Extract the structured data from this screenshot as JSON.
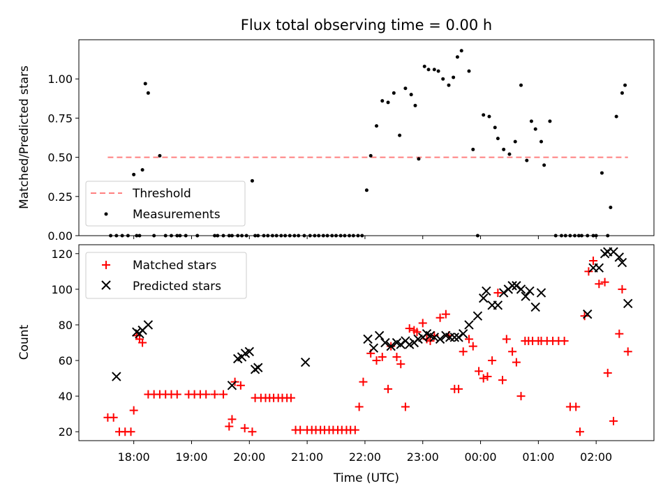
{
  "colors": {
    "threshold": "#ff7f7f",
    "measurement": "#000000",
    "matched": "#ff0000",
    "predicted": "#000000",
    "axes": "#000000"
  },
  "chart_data": [
    {
      "type": "scatter",
      "title": "Flux total observing time = 0.00 h",
      "xlabel": "",
      "ylabel": "Matched/Predicted stars",
      "xlim": [
        17.05,
        27.0
      ],
      "ylim": [
        0.0,
        1.25
      ],
      "yticks": [
        "0.00",
        "0.25",
        "0.50",
        "0.75",
        "1.00"
      ],
      "ytick_values": [
        0.0,
        0.25,
        0.5,
        0.75,
        1.0
      ],
      "legend_position": "lower-left",
      "threshold": {
        "name": "Threshold",
        "value": 0.5,
        "x": [
          17.55,
          26.55
        ]
      },
      "series": [
        {
          "name": "Measurements",
          "marker": "dot",
          "x": [
            17.6,
            17.7,
            17.8,
            17.9,
            18.0,
            18.05,
            18.1,
            18.15,
            18.2,
            18.25,
            18.35,
            18.45,
            18.55,
            18.65,
            18.75,
            18.8,
            18.9,
            19.1,
            19.4,
            19.45,
            19.55,
            19.65,
            19.7,
            19.8,
            19.87,
            19.95,
            20.05,
            20.1,
            20.15,
            20.25,
            20.32,
            20.4,
            20.47,
            20.55,
            20.62,
            20.7,
            20.78,
            20.85,
            20.95,
            21.05,
            21.13,
            21.2,
            21.28,
            21.35,
            21.43,
            21.5,
            21.58,
            21.65,
            21.73,
            21.8,
            21.88,
            21.95,
            22.03,
            22.1,
            22.2,
            22.3,
            22.4,
            22.5,
            22.6,
            22.7,
            22.8,
            22.87,
            22.93,
            23.03,
            23.1,
            23.2,
            23.27,
            23.35,
            23.45,
            23.53,
            23.6,
            23.67,
            23.8,
            23.87,
            23.95,
            24.05,
            24.15,
            24.25,
            24.3,
            24.4,
            24.5,
            24.6,
            24.7,
            24.8,
            24.88,
            24.95,
            25.05,
            25.1,
            25.2,
            25.3,
            25.4,
            25.47,
            25.55,
            25.63,
            25.7,
            25.75,
            25.85,
            25.95,
            26.0,
            26.1,
            26.2,
            26.25,
            26.35,
            26.45,
            26.5
          ],
          "y": [
            0.0,
            0.0,
            0.0,
            0.0,
            0.39,
            0.0,
            0.0,
            0.42,
            0.97,
            0.91,
            0.0,
            0.51,
            0.0,
            0.0,
            0.0,
            0.0,
            0.0,
            0.0,
            0.0,
            0.0,
            0.0,
            0.0,
            0.0,
            0.0,
            0.0,
            0.0,
            0.35,
            0.0,
            0.0,
            0.0,
            0.0,
            0.0,
            0.0,
            0.0,
            0.0,
            0.0,
            0.0,
            0.0,
            0.0,
            0.0,
            0.0,
            0.0,
            0.0,
            0.0,
            0.0,
            0.0,
            0.0,
            0.0,
            0.0,
            0.0,
            0.0,
            0.0,
            0.29,
            0.51,
            0.7,
            0.86,
            0.85,
            0.91,
            0.64,
            0.94,
            0.9,
            0.83,
            0.49,
            1.08,
            1.06,
            1.06,
            1.05,
            1.0,
            0.96,
            1.01,
            1.14,
            1.18,
            1.05,
            0.55,
            0.0,
            0.77,
            0.76,
            0.69,
            0.62,
            0.55,
            0.52,
            0.6,
            0.96,
            0.48,
            0.73,
            0.68,
            0.6,
            0.45,
            0.73,
            0.0,
            0.0,
            0.0,
            0.0,
            0.0,
            0.0,
            0.0,
            0.0,
            0.0,
            0.0,
            0.4,
            0.0,
            0.18,
            0.76,
            0.91,
            0.96
          ]
        }
      ]
    },
    {
      "type": "scatter",
      "title": "",
      "xlabel": "Time (UTC)",
      "ylabel": "Count",
      "xlim": [
        17.05,
        27.0
      ],
      "ylim": [
        15,
        125
      ],
      "yticks": [
        "20",
        "40",
        "60",
        "80",
        "100",
        "120"
      ],
      "ytick_values": [
        20,
        40,
        60,
        80,
        100,
        120
      ],
      "xticks": [
        "18:00",
        "19:00",
        "20:00",
        "21:00",
        "22:00",
        "23:00",
        "00:00",
        "01:00",
        "02:00"
      ],
      "xtick_values": [
        18,
        19,
        20,
        21,
        22,
        23,
        24,
        25,
        26
      ],
      "legend_position": "upper-left",
      "series": [
        {
          "name": "Matched stars",
          "marker": "plus",
          "x": [
            17.55,
            17.65,
            17.75,
            17.85,
            17.95,
            18.0,
            18.05,
            18.1,
            18.15,
            18.25,
            18.35,
            18.45,
            18.55,
            18.65,
            18.75,
            18.95,
            19.05,
            19.15,
            19.25,
            19.4,
            19.55,
            19.65,
            19.7,
            19.75,
            19.85,
            19.92,
            20.05,
            20.1,
            20.2,
            20.28,
            20.35,
            20.42,
            20.5,
            20.57,
            20.65,
            20.72,
            20.8,
            20.88,
            21.0,
            21.08,
            21.15,
            21.23,
            21.3,
            21.38,
            21.45,
            21.53,
            21.6,
            21.68,
            21.75,
            21.83,
            21.9,
            21.97,
            22.1,
            22.2,
            22.3,
            22.4,
            22.45,
            22.55,
            22.62,
            22.7,
            22.77,
            22.85,
            22.9,
            23.0,
            23.07,
            23.13,
            23.2,
            23.3,
            23.4,
            23.45,
            23.55,
            23.62,
            23.7,
            23.8,
            23.87,
            23.97,
            24.05,
            24.12,
            24.2,
            24.3,
            24.38,
            24.45,
            24.55,
            24.62,
            24.7,
            24.77,
            24.83,
            24.9,
            25.0,
            25.05,
            25.15,
            25.25,
            25.35,
            25.45,
            25.55,
            25.65,
            25.72,
            25.8,
            25.87,
            25.95,
            26.05,
            26.15,
            26.2,
            26.3,
            26.4,
            26.45,
            26.55
          ],
          "y": [
            28,
            28,
            20,
            20,
            20,
            32,
            74,
            72,
            70,
            41,
            41,
            41,
            41,
            41,
            41,
            41,
            41,
            41,
            41,
            41,
            41,
            23,
            27,
            48,
            46,
            22,
            20,
            39,
            39,
            39,
            39,
            39,
            39,
            39,
            39,
            39,
            21,
            21,
            21,
            21,
            21,
            21,
            21,
            21,
            21,
            21,
            21,
            21,
            21,
            21,
            34,
            48,
            64,
            60,
            62,
            44,
            68,
            62,
            58,
            34,
            78,
            77,
            76,
            81,
            72,
            71,
            74,
            84,
            86,
            74,
            44,
            44,
            65,
            72,
            68,
            54,
            50,
            51,
            60,
            98,
            49,
            72,
            65,
            59,
            40,
            71,
            71,
            71,
            71,
            71,
            71,
            71,
            71,
            71,
            34,
            34,
            20,
            85,
            110,
            116,
            103,
            104,
            53,
            26,
            75,
            100,
            65
          ],
          "order_note": ""
        },
        {
          "name": "Predicted stars",
          "marker": "x",
          "x": [
            17.7,
            18.05,
            18.1,
            18.15,
            18.25,
            19.7,
            19.8,
            19.87,
            19.93,
            20.0,
            20.1,
            20.15,
            20.97,
            22.05,
            22.15,
            22.25,
            22.35,
            22.45,
            22.55,
            22.62,
            22.7,
            22.77,
            22.85,
            22.92,
            23.0,
            23.07,
            23.13,
            23.2,
            23.3,
            23.4,
            23.47,
            23.55,
            23.62,
            23.7,
            23.8,
            23.95,
            24.05,
            24.1,
            24.2,
            24.3,
            24.4,
            24.48,
            24.55,
            24.62,
            24.7,
            24.78,
            24.85,
            24.95,
            25.05,
            25.85,
            25.95,
            26.05,
            26.15,
            26.2,
            26.3,
            26.4,
            26.45,
            26.55
          ],
          "y": [
            51,
            76,
            75,
            77,
            80,
            46,
            61,
            62,
            64,
            65,
            55,
            56,
            59,
            72,
            67,
            74,
            70,
            68,
            70,
            69,
            71,
            69,
            70,
            72,
            73,
            75,
            74,
            73,
            72,
            74,
            73,
            73,
            73,
            75,
            80,
            85,
            95,
            99,
            91,
            91,
            98,
            100,
            102,
            102,
            100,
            96,
            99,
            90,
            98,
            86,
            112,
            112,
            120,
            121,
            121,
            118,
            115,
            92
          ]
        }
      ]
    }
  ]
}
